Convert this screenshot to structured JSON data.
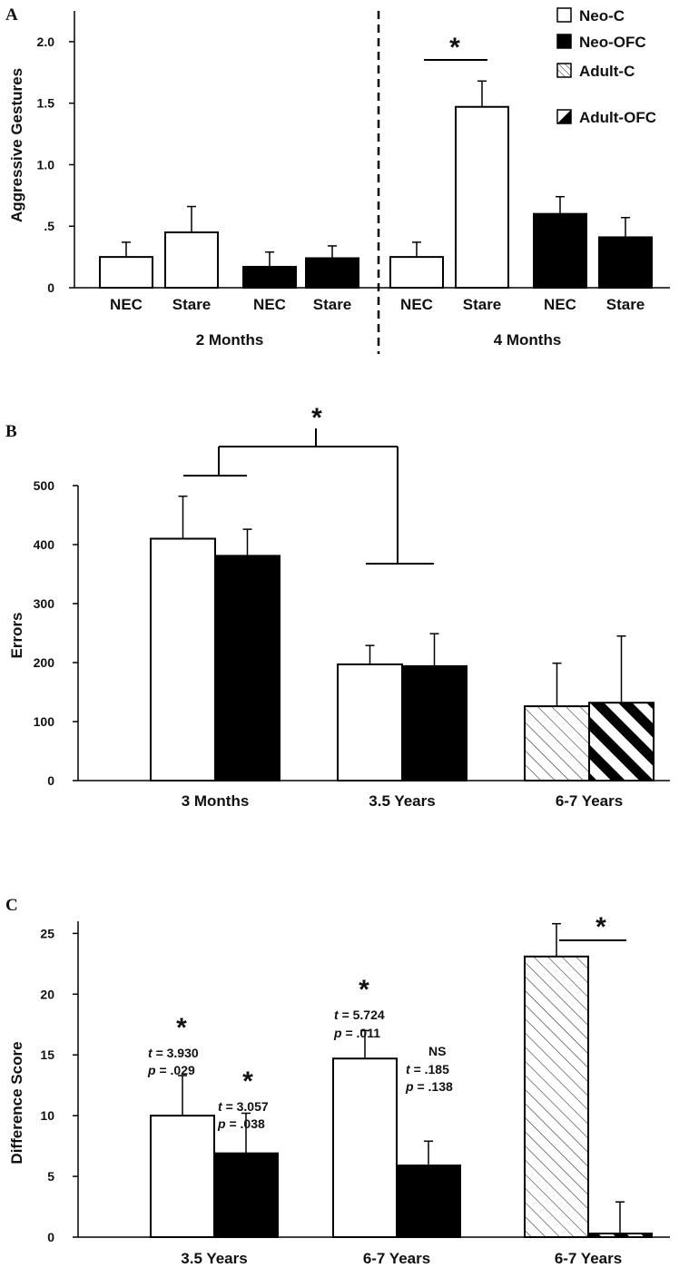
{
  "chart_data": [
    {
      "panel_label": "A",
      "type": "bar",
      "ylabel": "Aggressive Gestures",
      "ylim": [
        0,
        2.25
      ],
      "yticks": [
        "0",
        ".5",
        "1.0",
        "1.5",
        "2.0"
      ],
      "ytick_values": [
        0,
        0.5,
        1.0,
        1.5,
        2.0
      ],
      "groups": [
        "2 Months",
        "4 Months"
      ],
      "categories": [
        "NEC",
        "Stare",
        "NEC",
        "Stare",
        "NEC",
        "Stare",
        "NEC",
        "Stare"
      ],
      "bars": [
        {
          "group": "2 Months",
          "condition": "NEC",
          "series": "Neo-C",
          "value": 0.25,
          "error": 0.12
        },
        {
          "group": "2 Months",
          "condition": "Stare",
          "series": "Neo-C",
          "value": 0.45,
          "error": 0.21
        },
        {
          "group": "2 Months",
          "condition": "NEC",
          "series": "Neo-OFC",
          "value": 0.17,
          "error": 0.12
        },
        {
          "group": "2 Months",
          "condition": "Stare",
          "series": "Neo-OFC",
          "value": 0.24,
          "error": 0.1
        },
        {
          "group": "4 Months",
          "condition": "NEC",
          "series": "Neo-C",
          "value": 0.25,
          "error": 0.12
        },
        {
          "group": "4 Months",
          "condition": "Stare",
          "series": "Neo-C",
          "value": 1.47,
          "error": 0.21
        },
        {
          "group": "4 Months",
          "condition": "NEC",
          "series": "Neo-OFC",
          "value": 0.6,
          "error": 0.14
        },
        {
          "group": "4 Months",
          "condition": "Stare",
          "series": "Neo-OFC",
          "value": 0.41,
          "error": 0.16
        }
      ],
      "annotations": [
        "*"
      ],
      "legend": {
        "position": "top-right",
        "entries": [
          {
            "name": "Neo-C",
            "fill": "white"
          },
          {
            "name": "Neo-OFC",
            "fill": "black"
          },
          {
            "name": "Adult-C",
            "fill": "hatch"
          },
          {
            "name": "Adult-OFC",
            "fill": "half"
          }
        ]
      }
    },
    {
      "panel_label": "B",
      "type": "bar",
      "ylabel": "Errors",
      "ylim": [
        0,
        500
      ],
      "yticks": [
        "0",
        "100",
        "200",
        "300",
        "400",
        "500"
      ],
      "ytick_values": [
        0,
        100,
        200,
        300,
        400,
        500
      ],
      "categories": [
        "3 Months",
        "3.5 Years",
        "6-7 Years"
      ],
      "bars": [
        {
          "category": "3 Months",
          "series": "Neo-C",
          "value": 410,
          "error": 72
        },
        {
          "category": "3 Months",
          "series": "Neo-OFC",
          "value": 381,
          "error": 45
        },
        {
          "category": "3.5 Years",
          "series": "Neo-C",
          "value": 197,
          "error": 32
        },
        {
          "category": "3.5 Years",
          "series": "Neo-OFC",
          "value": 194,
          "error": 55
        },
        {
          "category": "6-7 Years",
          "series": "Adult-C",
          "value": 126,
          "error": 73
        },
        {
          "category": "6-7 Years",
          "series": "Adult-OFC",
          "value": 132,
          "error": 113
        }
      ],
      "annotations": [
        "*"
      ]
    },
    {
      "panel_label": "C",
      "type": "bar",
      "ylabel": "Difference Score",
      "ylim": [
        0,
        26
      ],
      "yticks": [
        "0",
        "5",
        "10",
        "15",
        "20",
        "25"
      ],
      "ytick_values": [
        0,
        5,
        10,
        15,
        20,
        25
      ],
      "categories": [
        "3.5 Years",
        "6-7 Years",
        "6-7 Years"
      ],
      "bars": [
        {
          "category": "3.5 Years",
          "series": "Neo-C",
          "value": 10.0,
          "error": 3.3
        },
        {
          "category": "3.5 Years",
          "series": "Neo-OFC",
          "value": 6.9,
          "error": 3.3
        },
        {
          "category": "6-7 Years",
          "series": "Neo-C",
          "value": 14.7,
          "error": 2.3
        },
        {
          "category": "6-7 Years",
          "series": "Neo-OFC",
          "value": 5.9,
          "error": 2.0
        },
        {
          "category": "6-7 Years",
          "series": "Adult-C",
          "value": 23.1,
          "error": 2.7
        },
        {
          "category": "6-7 Years",
          "series": "Adult-OFC",
          "value": 0.3,
          "error": 2.6
        }
      ],
      "annotations": [
        {
          "star": "*",
          "t": "= 3.930",
          "p": "= .029"
        },
        {
          "star": "*",
          "t": "= 3.057",
          "p": "= .038"
        },
        {
          "star": "*",
          "t": "= 5.724",
          "p": "= .011"
        },
        {
          "star": "NS",
          "t": "= .185",
          "p": "= .138"
        },
        {
          "star": "*"
        }
      ]
    }
  ],
  "stat_letters": {
    "t": "t",
    "p": "p"
  }
}
